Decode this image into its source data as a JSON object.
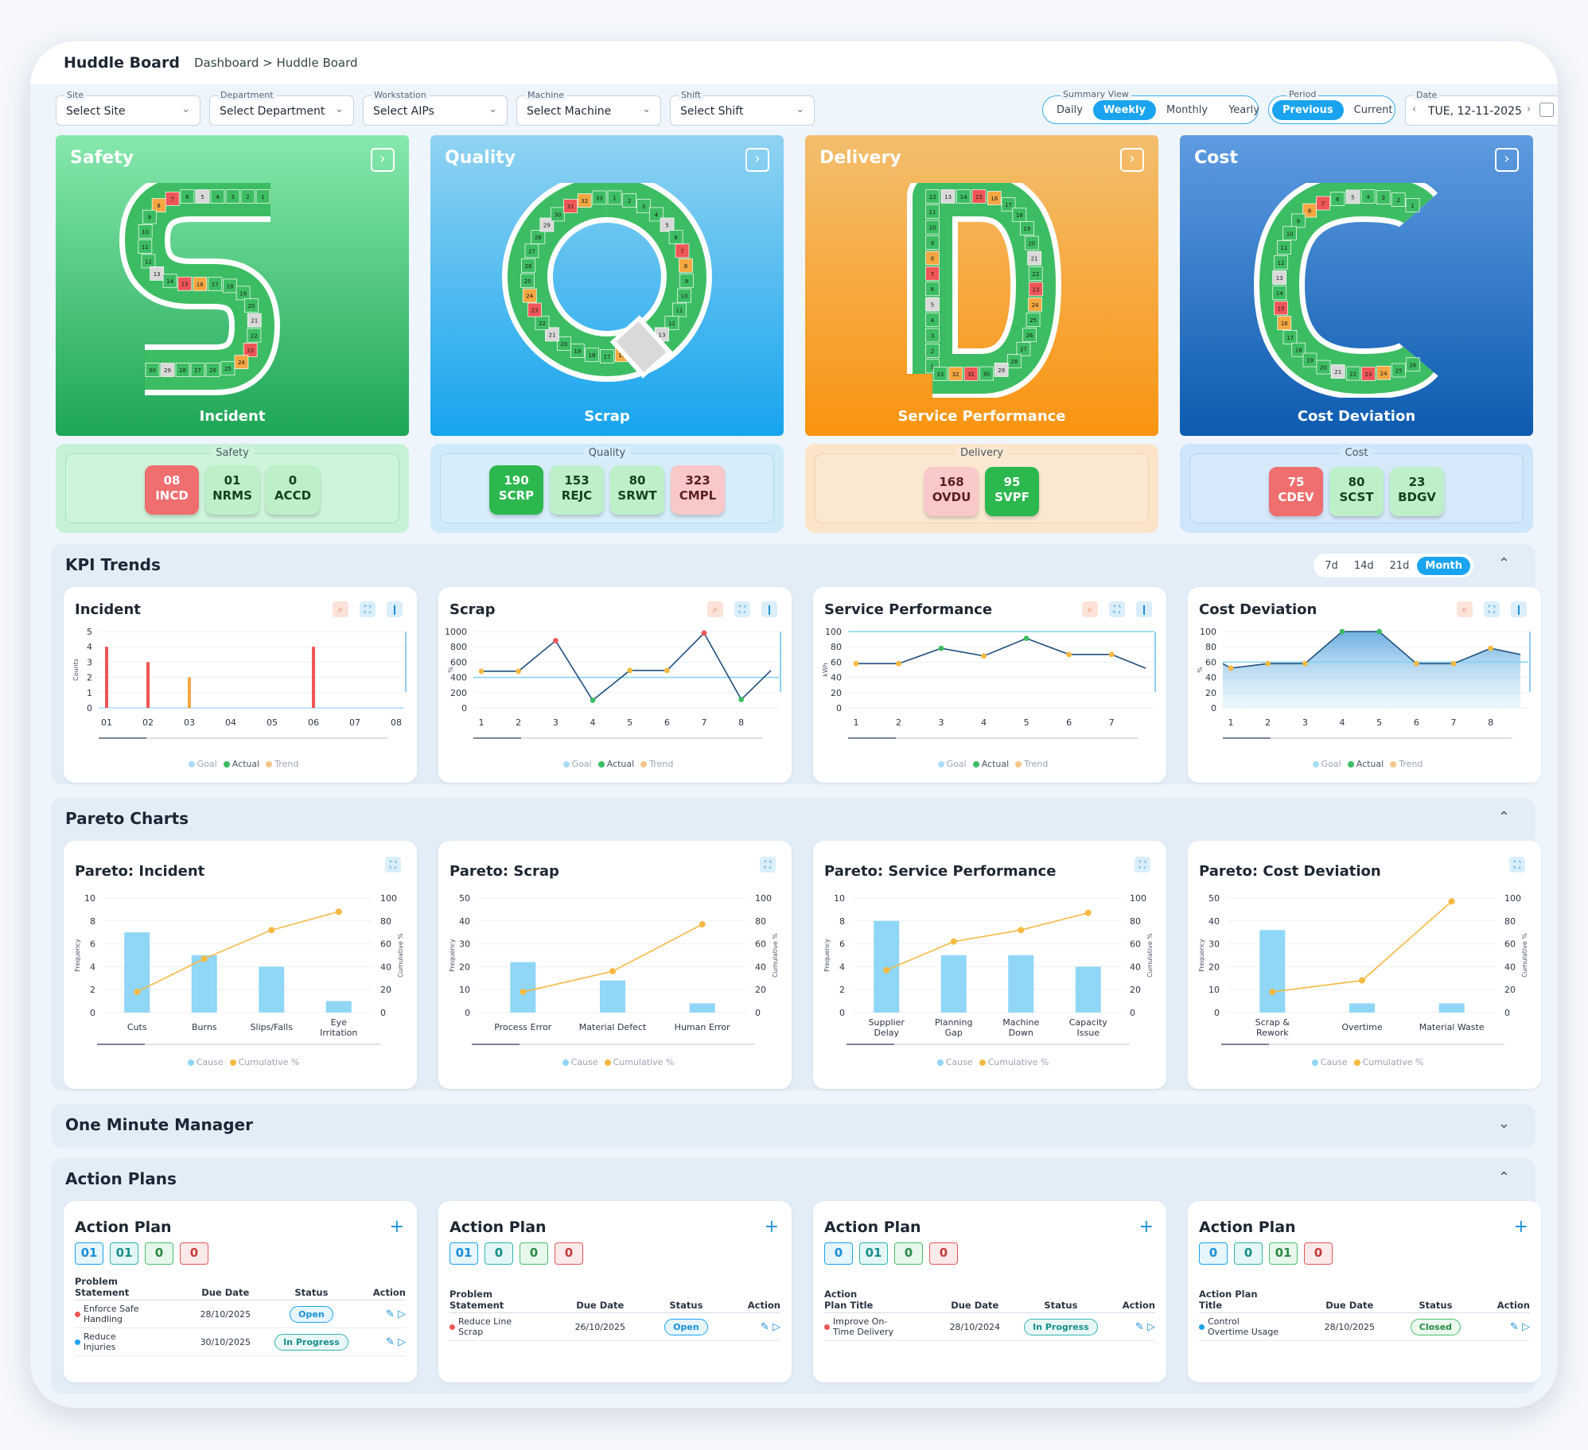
{
  "header": {
    "title": "Huddle Board",
    "breadcrumb": "Dashboard > Huddle Board"
  },
  "filters": [
    {
      "label": "Site",
      "value": "Select Site"
    },
    {
      "label": "Department",
      "value": "Select Department"
    },
    {
      "label": "Workstation",
      "value": "Select AIPs"
    },
    {
      "label": "Machine",
      "value": "Select Machine"
    },
    {
      "label": "Shift",
      "value": "Select Shift"
    }
  ],
  "summary_view": {
    "label": "Summary View",
    "options": [
      "Daily",
      "Weekly",
      "Monthly",
      "Yearly"
    ],
    "selected": "Weekly"
  },
  "period": {
    "label": "Period",
    "options": [
      "Previous",
      "Current"
    ],
    "selected": "Previous"
  },
  "date": {
    "label": "Date",
    "value": "TUE, 12-11-2025"
  },
  "sqdc": [
    {
      "title": "Safety",
      "letter": "S",
      "caption": "Incident",
      "box_label": "Safety",
      "chips": [
        {
          "num": "08",
          "code": "INCD",
          "color": "red"
        },
        {
          "num": "01",
          "code": "NRMS",
          "color": "green"
        },
        {
          "num": "0",
          "code": "ACCD",
          "color": "green"
        }
      ]
    },
    {
      "title": "Quality",
      "letter": "Q",
      "caption": "Scrap",
      "box_label": "Quality",
      "chips": [
        {
          "num": "190",
          "code": "SCRP",
          "color": "dgreen"
        },
        {
          "num": "153",
          "code": "REJC",
          "color": "green"
        },
        {
          "num": "80",
          "code": "SRWT",
          "color": "green"
        },
        {
          "num": "323",
          "code": "CMPL",
          "color": "pink"
        }
      ]
    },
    {
      "title": "Delivery",
      "letter": "D",
      "caption": "Service Performance",
      "box_label": "Delivery",
      "chips": [
        {
          "num": "168",
          "code": "OVDU",
          "color": "pink"
        },
        {
          "num": "95",
          "code": "SVPF",
          "color": "dgreen"
        }
      ]
    },
    {
      "title": "Cost",
      "letter": "C",
      "caption": "Cost Deviation",
      "box_label": "Cost",
      "chips": [
        {
          "num": "75",
          "code": "CDEV",
          "color": "red"
        },
        {
          "num": "80",
          "code": "SCST",
          "color": "green"
        },
        {
          "num": "23",
          "code": "BDGV",
          "color": "green"
        }
      ]
    }
  ],
  "kpi_trends": {
    "title": "KPI Trends",
    "ranges": [
      "7d",
      "14d",
      "21d",
      "Month"
    ],
    "selected": "Month"
  },
  "trend_legend": [
    "Goal",
    "Actual",
    "Trend"
  ],
  "pareto_title": "Pareto Charts",
  "pareto_legend": [
    "Cause",
    "Cumulative %"
  ],
  "omm_title": "One Minute Manager",
  "action_plans_title": "Action Plans",
  "colors": {
    "accent": "#1aa3ef",
    "red": "#ef5656",
    "green": "#3dbd63",
    "orange": "#f5a742",
    "gray": "#d9d9d9"
  },
  "chart_data": [
    {
      "type": "bar",
      "title": "Incident",
      "ylabel": "Counts",
      "categories": [
        "01",
        "02",
        "03",
        "04",
        "05",
        "06",
        "07",
        "08"
      ],
      "ylim": [
        0,
        5
      ],
      "yticks": [
        0,
        1,
        2,
        3,
        4,
        5
      ],
      "values": [
        4,
        3,
        2,
        0,
        0,
        4,
        0,
        0
      ],
      "bar_colors": [
        "red",
        "red",
        "orange",
        "red",
        "red",
        "red",
        "red",
        "red"
      ]
    },
    {
      "type": "line",
      "title": "Scrap",
      "ylabel": "%",
      "categories": [
        "1",
        "2",
        "3",
        "4",
        "5",
        "6",
        "7",
        "8"
      ],
      "ylim": [
        0,
        1000
      ],
      "yticks": [
        0,
        200,
        400,
        600,
        800,
        1000
      ],
      "goal": 400,
      "values": [
        480,
        480,
        880,
        100,
        490,
        490,
        980,
        110
      ],
      "y_end": 490
    },
    {
      "type": "line",
      "title": "Service Performance",
      "ylabel": "kWh",
      "categories": [
        "1",
        "2",
        "3",
        "4",
        "5",
        "6",
        "7"
      ],
      "ylim": [
        0,
        100
      ],
      "yticks": [
        0,
        20,
        40,
        60,
        80,
        100
      ],
      "goal": 100,
      "values": [
        58,
        58,
        78,
        68,
        91,
        70,
        70
      ],
      "y_end": 52
    },
    {
      "type": "area",
      "title": "Cost Deviation",
      "ylabel": "%",
      "categories": [
        "1",
        "2",
        "3",
        "4",
        "5",
        "6",
        "7",
        "8"
      ],
      "ylim": [
        0,
        100
      ],
      "yticks": [
        0,
        20,
        40,
        60,
        80,
        100
      ],
      "goal": 60,
      "values": [
        52,
        58,
        58,
        100,
        100,
        58,
        58,
        78
      ],
      "y_start": 58,
      "y_end": 70
    },
    {
      "type": "bar",
      "title": "Pareto: Incident",
      "ylabel": "Frequency",
      "y2label": "Cumulative %",
      "categories": [
        "Cuts",
        "Burns",
        "Slips/Falls",
        "Eye\nIrritation"
      ],
      "ylim": [
        0,
        10
      ],
      "yticks": [
        0,
        2,
        4,
        6,
        8,
        10
      ],
      "y2ticks": [
        0,
        20,
        40,
        60,
        80,
        100
      ],
      "values": [
        7,
        5,
        4,
        1
      ],
      "cumulative": [
        18,
        47,
        72,
        88
      ]
    },
    {
      "type": "bar",
      "title": "Pareto: Scrap",
      "ylabel": "Frequency",
      "y2label": "Cumulative %",
      "categories": [
        "Process Error",
        "Material Defect",
        "Human Error"
      ],
      "ylim": [
        0,
        50
      ],
      "yticks": [
        0,
        10,
        20,
        30,
        40,
        50
      ],
      "y2ticks": [
        0,
        20,
        40,
        60,
        80,
        100
      ],
      "values": [
        22,
        14,
        4
      ],
      "cumulative": [
        18,
        36,
        77
      ]
    },
    {
      "type": "bar",
      "title": "Pareto: Service Performance",
      "ylabel": "Frequency",
      "y2label": "Cumulative %",
      "categories": [
        "Supplier\nDelay",
        "Planning\nGap",
        "Machine\nDown",
        "Capacity\nIssue"
      ],
      "ylim": [
        0,
        10
      ],
      "yticks": [
        0,
        2,
        4,
        6,
        8,
        10
      ],
      "y2ticks": [
        0,
        20,
        40,
        60,
        80,
        100
      ],
      "values": [
        8,
        5,
        5,
        4
      ],
      "cumulative": [
        37,
        62,
        72,
        87
      ]
    },
    {
      "type": "bar",
      "title": "Pareto: Cost Deviation",
      "ylabel": "Frequency",
      "y2label": "Cumulative %",
      "categories": [
        "Scrap &\nRework",
        "Overtime",
        "Material Waste"
      ],
      "ylim": [
        0,
        50
      ],
      "yticks": [
        0,
        10,
        20,
        30,
        40,
        50
      ],
      "y2ticks": [
        0,
        20,
        40,
        60,
        80,
        100
      ],
      "values": [
        36,
        4,
        4
      ],
      "cumulative": [
        18,
        28,
        97
      ]
    }
  ],
  "action_plans": [
    {
      "title": "Action Plan",
      "counts": [
        "01",
        "01",
        "0",
        "0"
      ],
      "headers": [
        "Problem\nStatement",
        "Due Date",
        "Status",
        "Action"
      ],
      "rows": [
        {
          "text": "Enforce Safe\nHandling",
          "date": "28/10/2025",
          "status": "Open",
          "dot": "red"
        },
        {
          "text": "Reduce\nInjuries",
          "date": "30/10/2025",
          "status": "In Progress",
          "dot": "blue"
        }
      ]
    },
    {
      "title": "Action Plan",
      "counts": [
        "01",
        "0",
        "0",
        "0"
      ],
      "headers": [
        "Problem\nStatement",
        "Due Date",
        "Status",
        "Action"
      ],
      "rows": [
        {
          "text": "Reduce Line\nScrap",
          "date": "26/10/2025",
          "status": "Open",
          "dot": "red"
        }
      ]
    },
    {
      "title": "Action Plan",
      "counts": [
        "0",
        "01",
        "0",
        "0"
      ],
      "headers": [
        "Action\nPlan Title",
        "Due Date",
        "Status",
        "Action"
      ],
      "rows": [
        {
          "text": "Improve On-\nTime Delivery",
          "date": "28/10/2024",
          "status": "In Progress",
          "dot": "red"
        }
      ]
    },
    {
      "title": "Action Plan",
      "counts": [
        "0",
        "0",
        "01",
        "0"
      ],
      "headers": [
        "Action Plan\nTitle",
        "Due Date",
        "Status",
        "Action"
      ],
      "rows": [
        {
          "text": "Control\nOvertime Usage",
          "date": "28/10/2025",
          "status": "Closed",
          "dot": "blue"
        }
      ]
    }
  ]
}
